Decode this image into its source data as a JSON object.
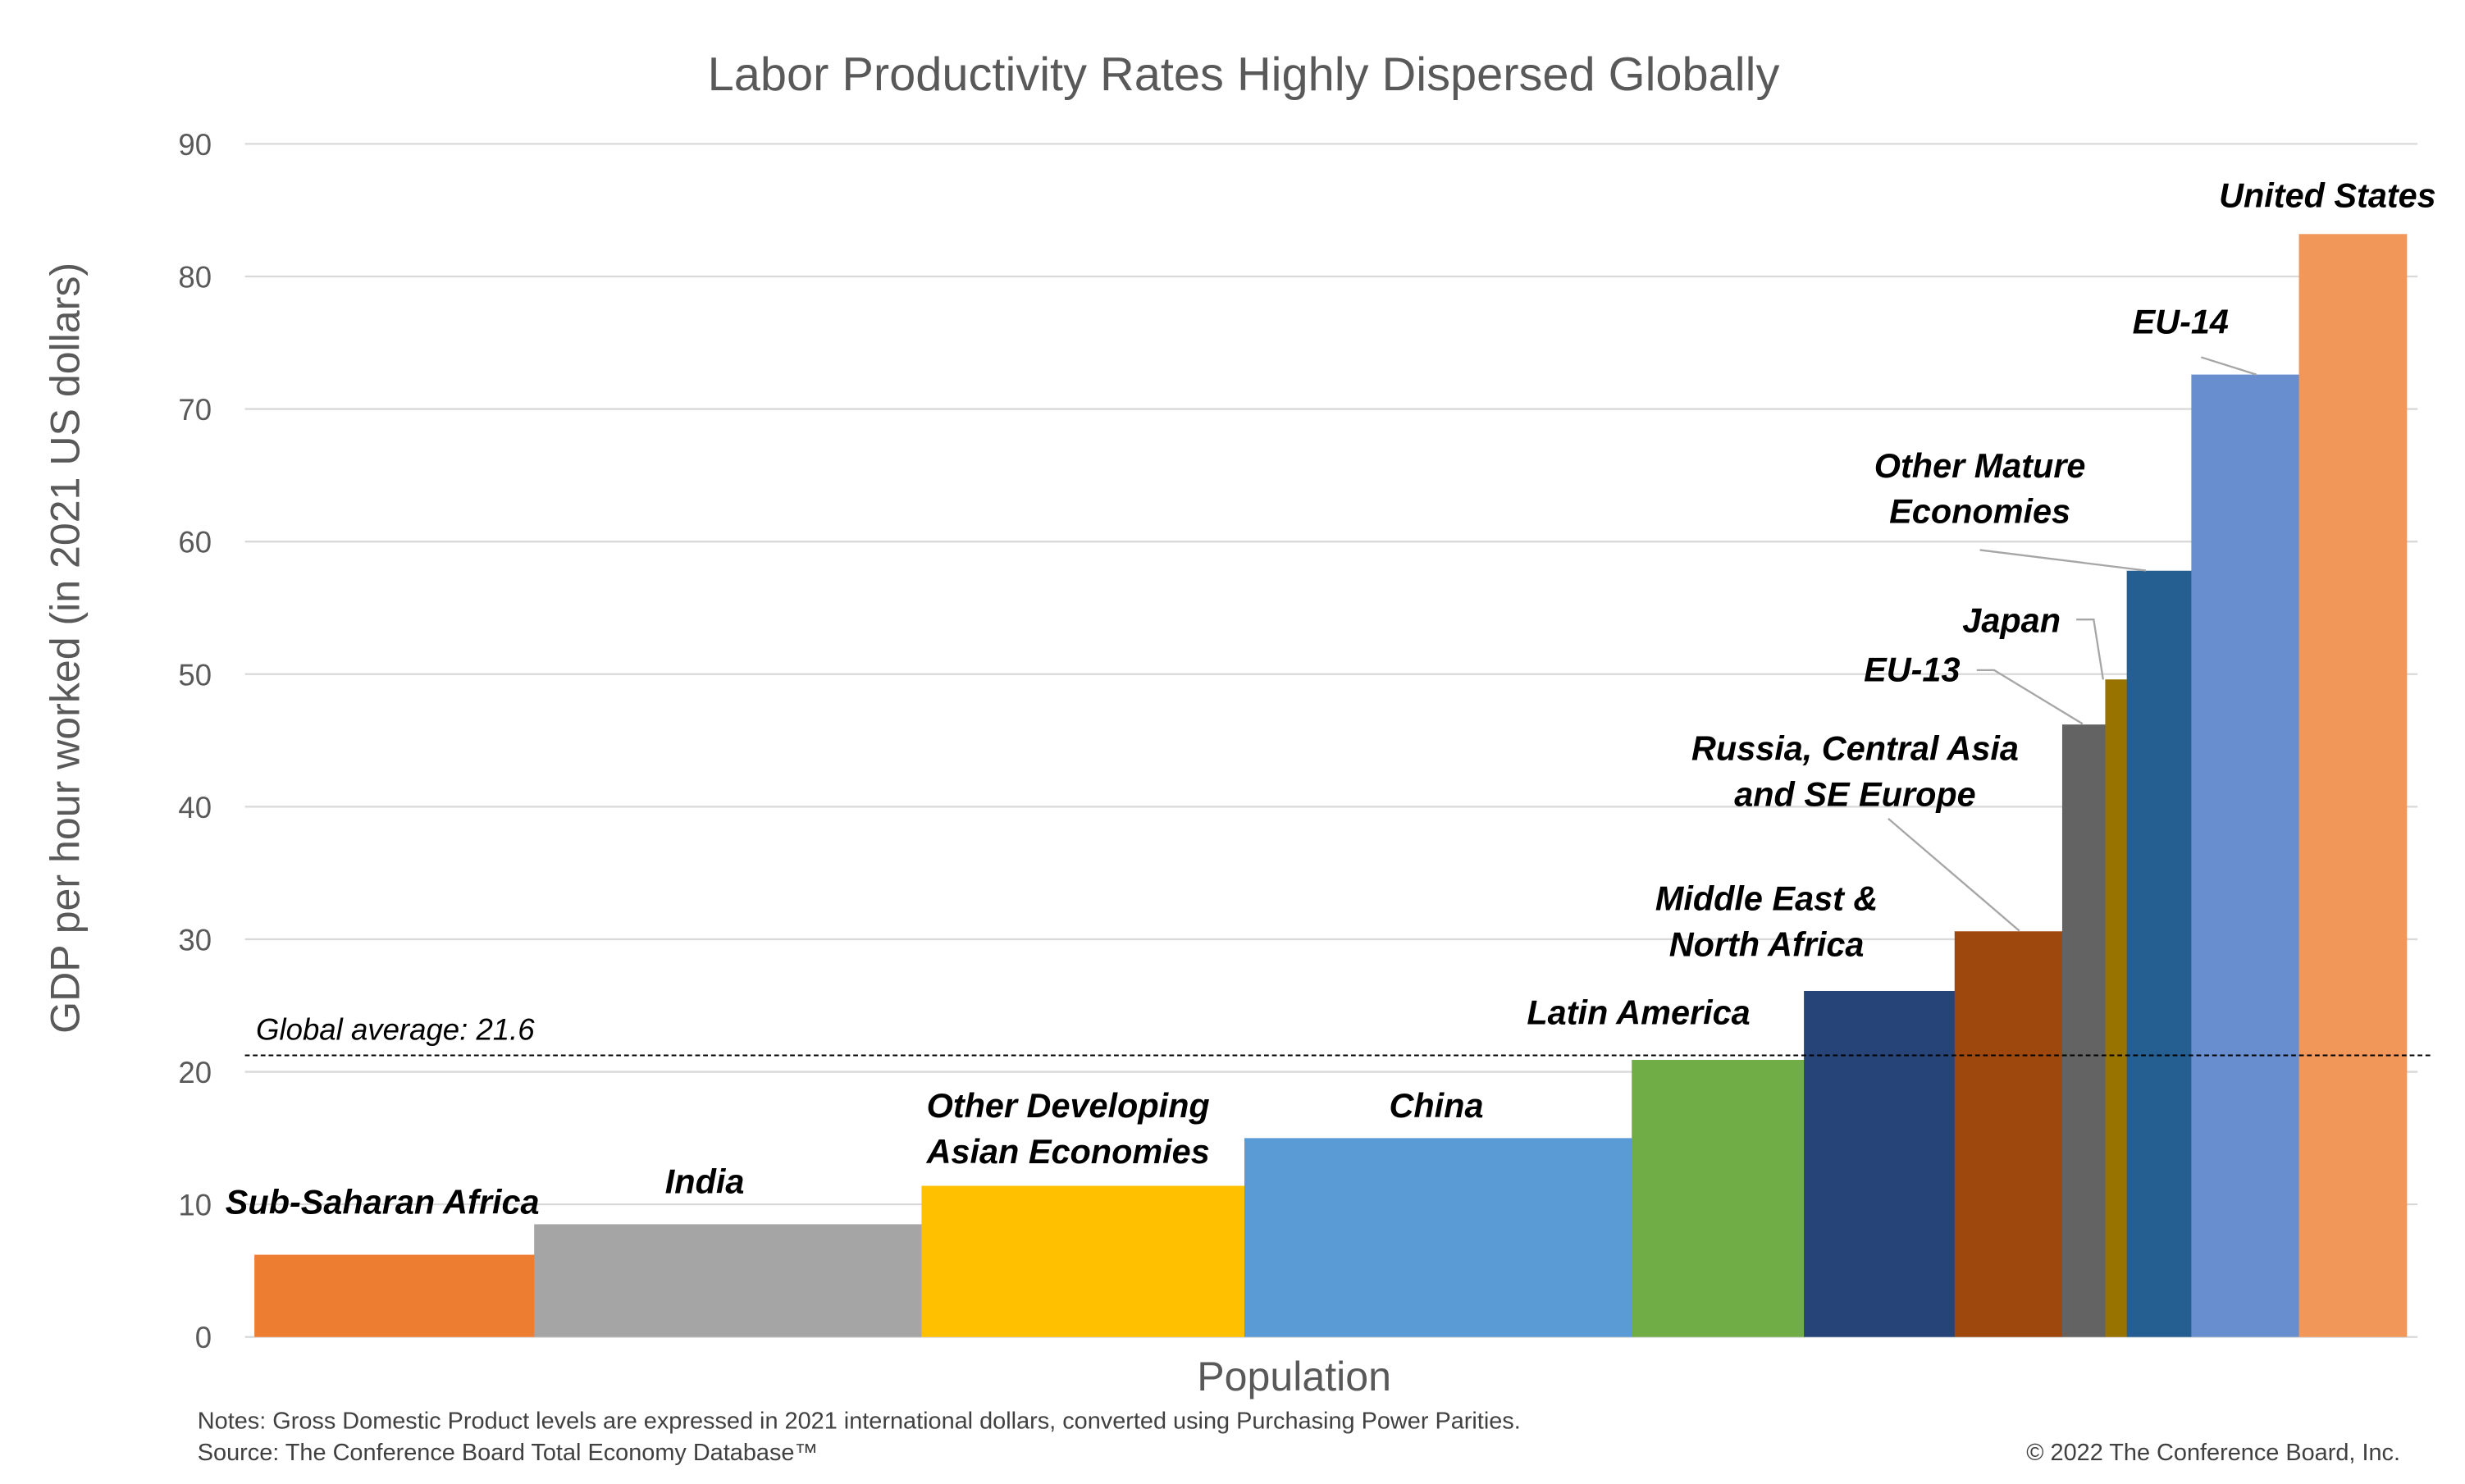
{
  "chart_data": {
    "type": "bar",
    "variant": "variable-width (bar width = population share)",
    "title": "Labor Productivity Rates Highly Dispersed Globally",
    "xlabel": "Population",
    "ylabel": "GDP per hour worked (in 2021 US dollars)",
    "ylim": [
      0,
      90
    ],
    "yticks": [
      "0",
      "10",
      "20",
      "30",
      "40",
      "50",
      "60",
      "70",
      "80",
      "90"
    ],
    "grid": true,
    "reference_line": {
      "label": "Global average: 21.6",
      "value": 21.6,
      "style": "dashed",
      "color": "#000000"
    },
    "categories": [
      {
        "name": "Sub-Saharan Africa",
        "lines": [
          "Sub-Saharan Africa"
        ],
        "value": 6.2,
        "population_share_pct": 13,
        "color": "#ED7D31"
      },
      {
        "name": "India",
        "lines": [
          "India"
        ],
        "value": 8.5,
        "population_share_pct": 18,
        "color": "#A5A5A5"
      },
      {
        "name": "Other Developing Asian Economies",
        "lines": [
          "Other Developing",
          "Asian Economies"
        ],
        "value": 11.4,
        "population_share_pct": 15,
        "color": "#FFC000"
      },
      {
        "name": "China",
        "lines": [
          "China"
        ],
        "value": 15.0,
        "population_share_pct": 18,
        "color": "#5B9BD5"
      },
      {
        "name": "Latin America",
        "lines": [
          "Latin America"
        ],
        "value": 20.9,
        "population_share_pct": 8,
        "color": "#70AD47"
      },
      {
        "name": "Middle East & North Africa",
        "lines": [
          "Middle East &",
          "North Africa"
        ],
        "value": 26.1,
        "population_share_pct": 7,
        "color": "#264478"
      },
      {
        "name": "Russia, Central Asia and SE Europe",
        "lines": [
          "Russia, Central Asia",
          "and SE Europe"
        ],
        "value": 30.6,
        "population_share_pct": 5,
        "color": "#9E480E"
      },
      {
        "name": "EU-13",
        "lines": [
          "EU-13"
        ],
        "value": 46.2,
        "population_share_pct": 2,
        "color": "#636363"
      },
      {
        "name": "Japan",
        "lines": [
          "Japan"
        ],
        "value": 49.6,
        "population_share_pct": 1,
        "color": "#997300"
      },
      {
        "name": "Other Mature Economies",
        "lines": [
          "Other Mature",
          "Economies"
        ],
        "value": 57.8,
        "population_share_pct": 3,
        "color": "#255E91"
      },
      {
        "name": "EU-14",
        "lines": [
          "EU-14"
        ],
        "value": 72.6,
        "population_share_pct": 5,
        "color": "#698ED0"
      },
      {
        "name": "United States",
        "lines": [
          "United States"
        ],
        "value": 83.2,
        "population_share_pct": 5,
        "color": "#F1975A"
      }
    ]
  },
  "notes": "Notes: Gross Domestic Product levels are expressed in 2021 international dollars, converted using Purchasing Power Parities.",
  "source": "Source: The Conference Board Total Economy Database™",
  "copyright": "© 2022 The Conference Board, Inc."
}
